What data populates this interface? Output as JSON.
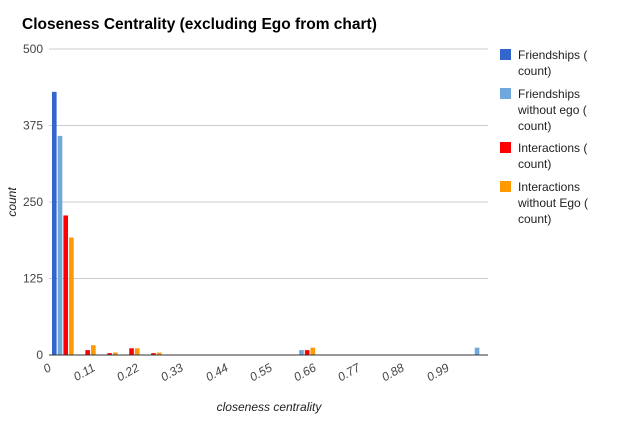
{
  "chart_data": {
    "type": "bar",
    "title": "Closeness Centrality (excluding Ego from chart)",
    "xlabel": "closeness centrality",
    "ylabel": "count",
    "ylim": [
      0,
      500
    ],
    "yticks": [
      "0",
      "125",
      "250",
      "375",
      "500"
    ],
    "xticks": [
      "0",
      "0.11",
      "0.22",
      "0.33",
      "0.44",
      "0.55",
      "0.66",
      "0.77",
      "0.88",
      "0.99"
    ],
    "grid": true,
    "legend_position": "right",
    "bins": [
      0,
      0.05,
      0.1,
      0.15,
      0.2,
      0.25,
      0.3,
      0.35,
      0.4,
      0.45,
      0.5,
      0.55,
      0.6,
      0.65,
      0.7,
      0.75,
      0.8,
      0.85,
      0.9,
      0.95
    ],
    "series": [
      {
        "name_lines": [
          "Friendships (",
          "count)"
        ],
        "color": "#3366cc",
        "values": [
          430,
          0,
          0,
          0,
          0,
          0,
          0,
          0,
          0,
          0,
          0,
          0,
          0,
          0,
          0,
          0,
          0,
          0,
          0,
          0
        ]
      },
      {
        "name_lines": [
          "Friendships",
          "without ego (",
          "count)"
        ],
        "color": "#6fa8dc",
        "values": [
          358,
          0,
          0,
          0,
          0,
          0,
          0,
          0,
          0,
          0,
          0,
          8,
          0,
          0,
          0,
          0,
          0,
          0,
          0,
          12
        ]
      },
      {
        "name_lines": [
          "Interactions (",
          "count)"
        ],
        "color": "#ff0000",
        "values": [
          228,
          8,
          3,
          11,
          3,
          0,
          0,
          0,
          0,
          0,
          0,
          8,
          0,
          0,
          0,
          0,
          0,
          0,
          0,
          0
        ]
      },
      {
        "name_lines": [
          "Interactions",
          "without Ego (",
          "count)"
        ],
        "color": "#ff9900",
        "values": [
          192,
          16,
          4,
          11,
          4,
          0,
          0,
          0,
          0,
          0,
          0,
          12,
          0,
          0,
          0,
          0,
          0,
          0,
          0,
          0
        ]
      }
    ]
  }
}
